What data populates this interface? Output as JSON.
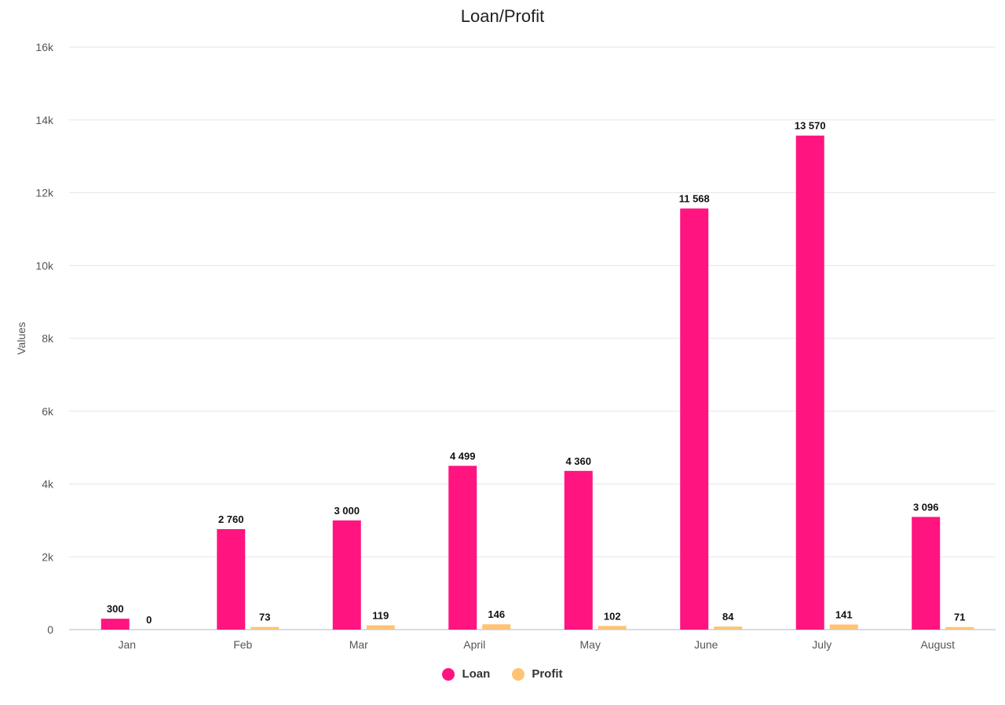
{
  "chart_data": {
    "type": "bar",
    "title": "Loan/Profit",
    "ylabel": "Values",
    "xlabel": "",
    "ylim": [
      0,
      16000
    ],
    "y_ticks": [
      0,
      2000,
      4000,
      6000,
      8000,
      10000,
      12000,
      14000,
      16000
    ],
    "y_tick_labels": [
      "0",
      "2k",
      "4k",
      "6k",
      "8k",
      "10k",
      "12k",
      "14k",
      "16k"
    ],
    "categories": [
      "Jan",
      "Feb",
      "Mar",
      "April",
      "May",
      "June",
      "July",
      "August"
    ],
    "series": [
      {
        "name": "Loan",
        "color": "#FF1480",
        "values": [
          300,
          2760,
          3000,
          4499,
          4360,
          11568,
          13570,
          3096
        ],
        "labels": [
          "300",
          "2 760",
          "3 000",
          "4 499",
          "4 360",
          "11 568",
          "13 570",
          "3 096"
        ]
      },
      {
        "name": "Profit",
        "color": "#FFC375",
        "values": [
          0,
          73,
          119,
          146,
          102,
          84,
          141,
          71
        ],
        "labels": [
          "0",
          "73",
          "119",
          "146",
          "102",
          "84",
          "141",
          "71"
        ]
      }
    ],
    "grid": true,
    "legend_position": "bottom-center"
  }
}
